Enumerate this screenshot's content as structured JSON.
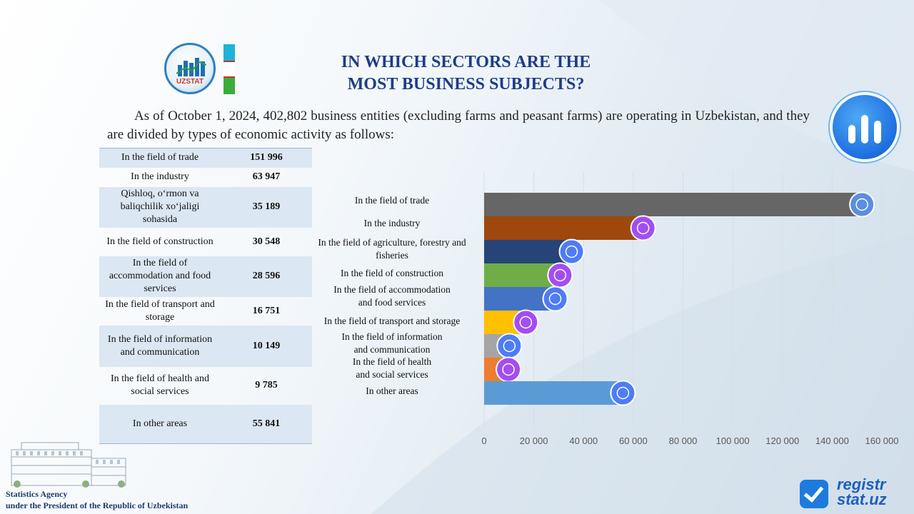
{
  "header": {
    "logo_text": "UZSTAT",
    "title_line1": "IN WHICH SECTORS ARE THE",
    "title_line2": "MOST BUSINESS SUBJECTS?",
    "intro": "As of October 1, 2024, 402,802 business entities (excluding farms and peasant farms) are operating in Uzbekistan, and they are divided by types of economic activity as follows:"
  },
  "table": {
    "rows": [
      {
        "label": "In the field of trade",
        "value": "151 996"
      },
      {
        "label": "In the industry",
        "value": "63 947"
      },
      {
        "label": "Qishloq, o‘rmon va baliqchilik xo‘jaligi sohasida",
        "value": "35 189"
      },
      {
        "label": "In the field of construction",
        "value": "30 548"
      },
      {
        "label": "In the field of accommodation and food services",
        "value": "28 596"
      },
      {
        "label": "In the field of transport and storage",
        "value": "16 751"
      },
      {
        "label": "In the field of information and communication",
        "value": "10 149"
      },
      {
        "label": "In the field of health and social services",
        "value": "9 785"
      },
      {
        "label": "In other areas",
        "value": "55 841"
      }
    ]
  },
  "chart_data": {
    "type": "bar",
    "orientation": "horizontal",
    "categories": [
      "In the field of trade",
      "In the industry",
      "In the field of agriculture, forestry and fisheries",
      "In the field of construction",
      "In the field of accommodation and food services",
      "In the field of transport and storage",
      "In the field of information and communication",
      "In the field of health and social services",
      "In other areas"
    ],
    "values": [
      151996,
      63947,
      35189,
      30548,
      28596,
      16751,
      10149,
      9785,
      55841
    ],
    "colors": [
      "#666666",
      "#9e480e",
      "#264478",
      "#70ad47",
      "#4472c4",
      "#ffc000",
      "#a5a5a5",
      "#ed7d31",
      "#5b9bd5"
    ],
    "icons": [
      "shop-icon",
      "factory-icon",
      "tractor-icon",
      "crane-icon",
      "hotel-icon",
      "truck-icon",
      "network-icon",
      "health-icon",
      "more-icon"
    ],
    "xlim": [
      0,
      160000
    ],
    "xticks": [
      0,
      20000,
      40000,
      60000,
      80000,
      100000,
      120000,
      140000,
      160000
    ],
    "xtick_labels": [
      "0",
      "20 000",
      "40 000",
      "60 000",
      "80 000",
      "100 000",
      "120 000",
      "140 000",
      "160 000"
    ],
    "grid": true,
    "title": "",
    "xlabel": "",
    "ylabel": ""
  },
  "footer": {
    "agency_line1": "Statistics Agency",
    "agency_line2": "under the President of the Republic of Uzbekistan",
    "brand_line1": "registr",
    "brand_line2": "stat.uz"
  }
}
